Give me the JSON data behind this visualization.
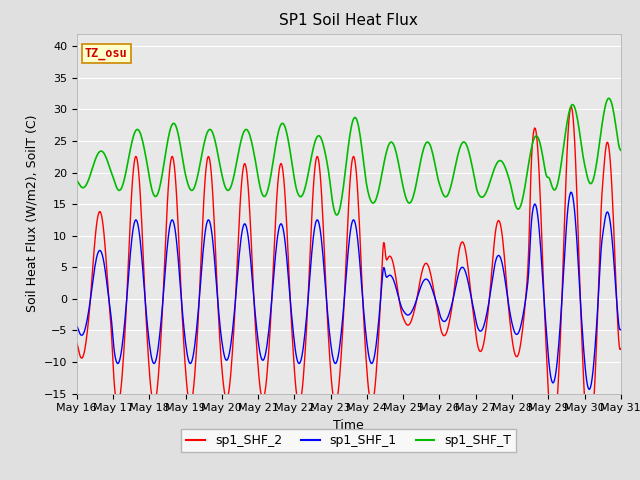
{
  "title": "SP1 Soil Heat Flux",
  "xlabel": "Time",
  "ylabel": "Soil Heat Flux (W/m2), SoilT (C)",
  "ylim": [
    -15,
    42
  ],
  "yticks": [
    -15,
    -10,
    -5,
    0,
    5,
    10,
    15,
    20,
    25,
    30,
    35,
    40
  ],
  "xlim_days": [
    16,
    31
  ],
  "tz_label": "TZ_osu",
  "bg_color": "#e0e0e0",
  "plot_bg_color": "#e8e8e8",
  "grid_color": "#ffffff",
  "color_shf2": "#ff0000",
  "color_shf1": "#0000ff",
  "color_shft": "#00bb00",
  "legend_labels": [
    "sp1_SHF_2",
    "sp1_SHF_1",
    "sp1_SHF_T"
  ],
  "title_fontsize": 11,
  "label_fontsize": 9,
  "tick_fontsize": 8
}
